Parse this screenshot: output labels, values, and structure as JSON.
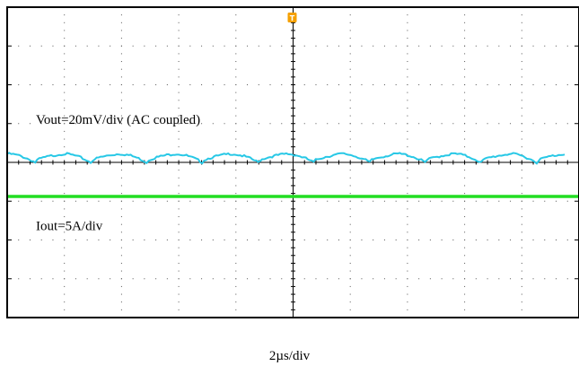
{
  "chart_data": {
    "type": "line",
    "title": "",
    "grid": true,
    "colors": {
      "vout": "#28c8e6",
      "iout": "#22dd22",
      "trigger": "#f5a000",
      "frame": "#000000"
    },
    "trigger_marker": "T",
    "x_divisions": 10,
    "y_divisions": 8,
    "x_range_div": [
      -5,
      5
    ],
    "y_range_div": [
      -4,
      4
    ],
    "time_per_div": "2µs/div",
    "series": [
      {
        "name": "Vout=20mV/div (AC coupled)",
        "waveform": "ripple",
        "x_div": [
          -5,
          -4.51,
          -4.02,
          -3.54,
          -3.05,
          -2.56,
          -2.07,
          -1.59,
          -1.1,
          -0.61,
          -0.12,
          0.36,
          0.85,
          1.34,
          1.83,
          2.31,
          2.8,
          3.29,
          3.78,
          4.26,
          4.75
        ],
        "y_div": [
          0.22,
          0.0,
          0.22,
          0.0,
          0.22,
          0.0,
          0.22,
          0.0,
          0.22,
          0.0,
          0.22,
          0.0,
          0.22,
          0.0,
          0.22,
          0.0,
          0.22,
          0.0,
          0.22,
          0.0,
          0.22
        ],
        "vertical_scale": "20mV/div"
      },
      {
        "name": "Iout=5A/div",
        "waveform": "flat",
        "y_div": -0.88,
        "vertical_scale": "5A/div"
      }
    ]
  }
}
